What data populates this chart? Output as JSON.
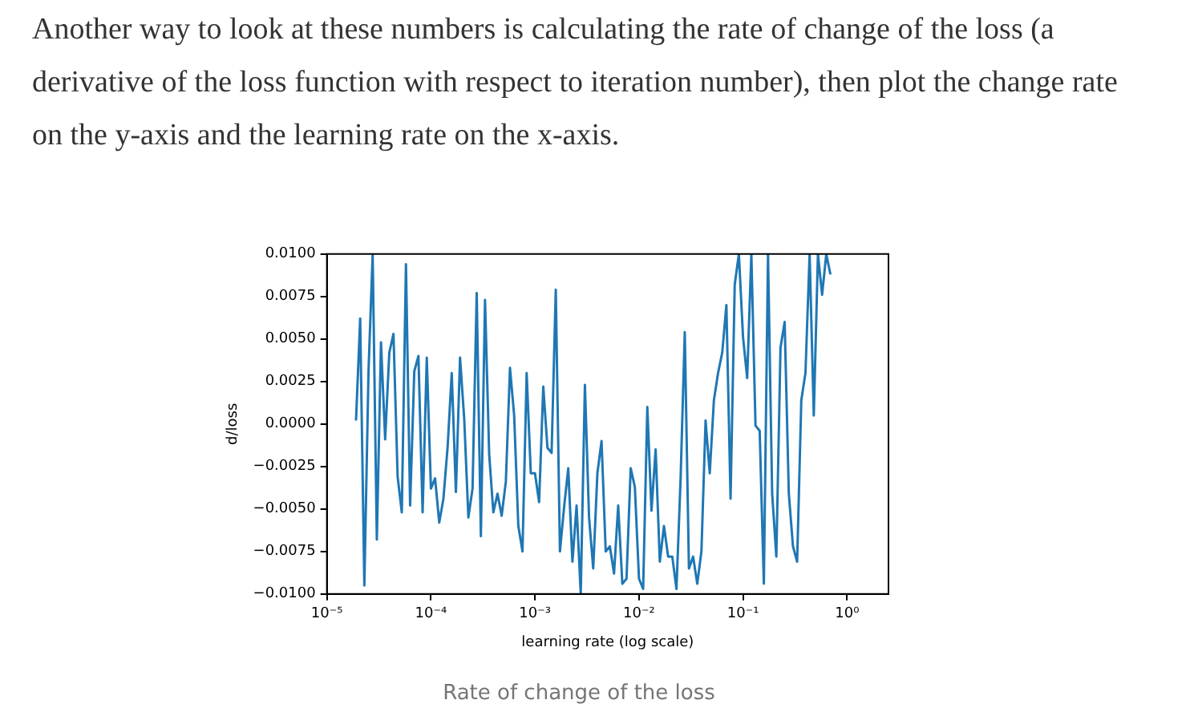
{
  "chart_data": {
    "type": "line",
    "annotations": [
      "Another way to look at these numbers is calculating the rate of change of the loss (a derivative of the loss function with respect to iteration number), then plot the change rate on the y-axis and the learning rate on the x-axis.",
      "Rate of change of the loss"
    ],
    "xlabel": "learning rate (log scale)",
    "ylabel": "d/loss",
    "log": "x",
    "marker": "none",
    "color": "#1f77b4",
    "xlim": [
      1e-05,
      2.5
    ],
    "xticks": [
      {
        "value": 1e-05,
        "label": "10⁻⁵"
      },
      {
        "value": 0.0001,
        "label": "10⁻⁴"
      },
      {
        "value": 0.001,
        "label": "10⁻³"
      },
      {
        "value": 0.01,
        "label": "10⁻²"
      },
      {
        "value": 0.1,
        "label": "10⁻¹"
      },
      {
        "value": 1,
        "label": "10⁰"
      }
    ],
    "ylim": [
      -0.01,
      0.01
    ],
    "yticks": [
      {
        "value": -0.01,
        "label": "−0.0100"
      },
      {
        "value": -0.0075,
        "label": "−0.0075"
      },
      {
        "value": -0.005,
        "label": "−0.0050"
      },
      {
        "value": -0.0025,
        "label": "−0.0025"
      },
      {
        "value": 0,
        "label": "0.0000"
      },
      {
        "value": 0.0025,
        "label": "0.0025"
      },
      {
        "value": 0.005,
        "label": "0.0050"
      },
      {
        "value": 0.0075,
        "label": "0.0075"
      },
      {
        "value": 0.01,
        "label": "0.0100"
      }
    ],
    "x": [
      1.905e-05,
      2.089e-05,
      2.291e-05,
      2.512e-05,
      2.754e-05,
      3.02e-05,
      3.311e-05,
      3.631e-05,
      3.981e-05,
      4.365e-05,
      4.786e-05,
      5.248e-05,
      5.754e-05,
      6.31e-05,
      6.918e-05,
      7.586e-05,
      8.318e-05,
      9.12e-05,
      0.0001,
      0.0001096,
      0.0001202,
      0.0001318,
      0.0001445,
      0.0001585,
      0.0001738,
      0.0001905,
      0.0002089,
      0.0002291,
      0.0002512,
      0.0002754,
      0.000302,
      0.0003311,
      0.0003631,
      0.0003981,
      0.0004365,
      0.0004786,
      0.0005248,
      0.0005754,
      0.000631,
      0.0006918,
      0.0007586,
      0.0008318,
      0.000912,
      0.001,
      0.001096,
      0.001202,
      0.001318,
      0.001445,
      0.001585,
      0.001738,
      0.001905,
      0.002089,
      0.002291,
      0.002512,
      0.002754,
      0.00302,
      0.003311,
      0.003631,
      0.003981,
      0.004365,
      0.004786,
      0.005248,
      0.005754,
      0.00631,
      0.006918,
      0.007586,
      0.008318,
      0.00912,
      0.01,
      0.01096,
      0.01202,
      0.01318,
      0.01445,
      0.01585,
      0.01738,
      0.01905,
      0.02089,
      0.02291,
      0.02512,
      0.02754,
      0.0302,
      0.03311,
      0.03631,
      0.03981,
      0.04365,
      0.04786,
      0.05248,
      0.05754,
      0.0631,
      0.06918,
      0.07586,
      0.08318,
      0.0912,
      0.1,
      0.1096,
      0.1202,
      0.1318,
      0.1445,
      0.1585,
      0.1738,
      0.1905,
      0.2089,
      0.2291,
      0.2512,
      0.2754,
      0.302,
      0.3311,
      0.3631,
      0.3981,
      0.4365,
      0.4786,
      0.5248,
      0.5754,
      0.631,
      0.6918
    ],
    "values": [
      0.0002,
      0.0062,
      -0.0095,
      0.0031,
      0.01,
      -0.0068,
      0.0048,
      -0.0009,
      0.0042,
      0.0053,
      -0.0031,
      -0.0052,
      0.0094,
      -0.0048,
      0.0031,
      0.004,
      -0.0052,
      0.0039,
      -0.0038,
      -0.0032,
      -0.0058,
      -0.0044,
      -0.0014,
      0.003,
      -0.004,
      0.0039,
      0.0003,
      -0.0055,
      -0.0038,
      0.0077,
      -0.0066,
      0.0073,
      -0.0018,
      -0.0052,
      -0.0041,
      -0.0054,
      -0.0034,
      0.0033,
      0.0005,
      -0.006,
      -0.0075,
      0.003,
      -0.0029,
      -0.0029,
      -0.0046,
      0.0022,
      -0.0014,
      -0.0017,
      0.0079,
      -0.0075,
      -0.0049,
      -0.0026,
      -0.0081,
      -0.0048,
      -0.01,
      0.0023,
      -0.0055,
      -0.0085,
      -0.0029,
      -0.001,
      -0.0075,
      -0.0072,
      -0.0088,
      -0.0048,
      -0.0094,
      -0.0091,
      -0.0026,
      -0.0037,
      -0.0091,
      -0.0097,
      0.001,
      -0.0051,
      -0.0015,
      -0.0081,
      -0.006,
      -0.0078,
      -0.0078,
      -0.0097,
      -0.0032,
      0.0054,
      -0.0085,
      -0.0078,
      -0.0094,
      -0.0075,
      0.0002,
      -0.0029,
      0.0014,
      0.003,
      0.0042,
      0.007,
      -0.0044,
      0.0082,
      0.01,
      0.0051,
      0.0027,
      0.01,
      -0.0001,
      -0.0004,
      -0.0094,
      0.01,
      -0.0041,
      -0.0078,
      0.0045,
      0.006,
      -0.0041,
      -0.0072,
      -0.0081,
      0.0014,
      0.003,
      0.01,
      0.0005,
      0.01,
      0.0076,
      0.01,
      0.0088
    ]
  }
}
